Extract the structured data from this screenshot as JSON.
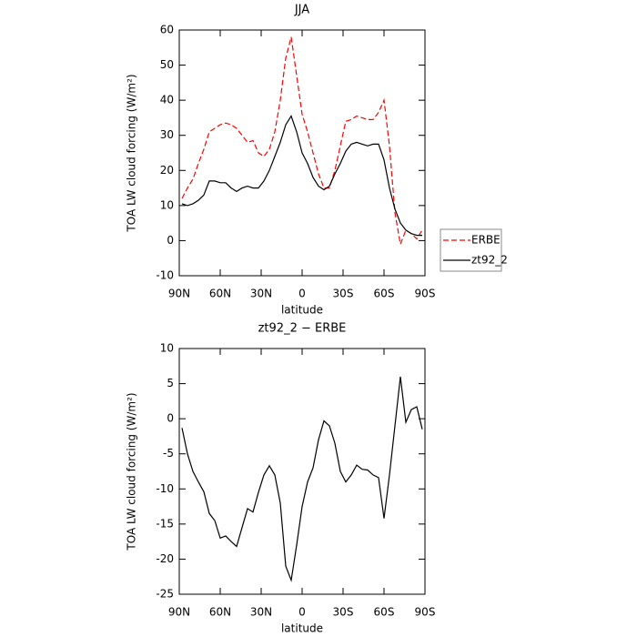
{
  "chart_data": [
    {
      "type": "line",
      "title": "JJA",
      "x_label": "latitude",
      "y_label": "TOA LW cloud forcing (W/m²)",
      "x": [
        88,
        84,
        80,
        76,
        72,
        68,
        64,
        60,
        56,
        52,
        48,
        44,
        40,
        36,
        32,
        28,
        24,
        20,
        16,
        12,
        8,
        4,
        0,
        -4,
        -8,
        -12,
        -16,
        -20,
        -24,
        -28,
        -32,
        -36,
        -40,
        -44,
        -48,
        -52,
        -56,
        -60,
        -64,
        -68,
        -72,
        -76,
        -80,
        -84,
        -88
      ],
      "series": [
        {
          "name": "ERBE",
          "color": "#ff0000",
          "linestyle": "dashed",
          "values": [
            12,
            15,
            17.5,
            22,
            26,
            31,
            32,
            33,
            33.5,
            33,
            32,
            30,
            28,
            28.5,
            25,
            24,
            26,
            31,
            40,
            52,
            58,
            47,
            36,
            31,
            25,
            19,
            15,
            15,
            20,
            27,
            34,
            34.5,
            35.5,
            35,
            34.5,
            34.5,
            36.5,
            40,
            27,
            8,
            -1,
            3,
            2,
            0.5,
            3
          ]
        },
        {
          "name": "zt92_2",
          "color": "#000000",
          "linestyle": "solid",
          "values": [
            10.5,
            10,
            10.5,
            11.5,
            13,
            17,
            17,
            16.5,
            16.5,
            15,
            14,
            15,
            15.5,
            15,
            15,
            17,
            20,
            24,
            28,
            33,
            35.5,
            31,
            25,
            22,
            18,
            15.5,
            14.5,
            15.5,
            19,
            22,
            25.5,
            27.5,
            28,
            27.5,
            27,
            27.5,
            27.5,
            23,
            15,
            9,
            5,
            3,
            2,
            1.5,
            1.5
          ]
        }
      ],
      "xlim": [
        90,
        -90
      ],
      "xticks": [
        {
          "value": 90,
          "label": "90N"
        },
        {
          "value": 60,
          "label": "60N"
        },
        {
          "value": 30,
          "label": "30N"
        },
        0,
        {
          "value": -30,
          "label": "30S"
        },
        {
          "value": -60,
          "label": "60S"
        },
        {
          "value": -90,
          "label": "90S"
        }
      ],
      "ylim": [
        -10,
        60
      ],
      "yticks": [
        -10,
        0,
        10,
        20,
        30,
        40,
        50,
        60
      ],
      "legend": "right"
    },
    {
      "type": "line",
      "title": "zt92_2 − ERBE",
      "x_label": "latitude",
      "y_label": "TOA LW cloud forcing (W/m²)",
      "x": [
        88,
        84,
        80,
        76,
        72,
        68,
        64,
        60,
        56,
        52,
        48,
        44,
        40,
        36,
        32,
        28,
        24,
        20,
        16,
        12,
        8,
        4,
        0,
        -4,
        -8,
        -12,
        -16,
        -20,
        -24,
        -28,
        -32,
        -36,
        -40,
        -44,
        -48,
        -52,
        -56,
        -60,
        -64,
        -68,
        -72,
        -76,
        -80,
        -84,
        -88
      ],
      "color": "#000000",
      "values": [
        -1.3,
        -5,
        -7.5,
        -9,
        -10.4,
        -13.5,
        -14.5,
        -17,
        -16.7,
        -17.5,
        -18.2,
        -15.5,
        -12.8,
        -13.3,
        -10.5,
        -8,
        -6.7,
        -8,
        -12,
        -21,
        -23,
        -18,
        -12.5,
        -9,
        -7,
        -3,
        -0.3,
        -1,
        -3.5,
        -7.5,
        -9,
        -8,
        -6.6,
        -7.2,
        -7.3,
        -8,
        -8.4,
        -14.2,
        -8,
        -1,
        6,
        -0.5,
        1.3,
        1.7,
        -1.5
      ],
      "xlim": [
        90,
        -90
      ],
      "xticks": [
        {
          "value": 90,
          "label": "90N"
        },
        {
          "value": 60,
          "label": "60N"
        },
        {
          "value": 30,
          "label": "30N"
        },
        0,
        {
          "value": -30,
          "label": "30S"
        },
        {
          "value": -60,
          "label": "60S"
        },
        {
          "value": -90,
          "label": "90S"
        }
      ],
      "ylim": [
        -25,
        10
      ],
      "yticks": [
        -25,
        -20,
        -15,
        -10,
        -5,
        0,
        5,
        10
      ]
    }
  ]
}
